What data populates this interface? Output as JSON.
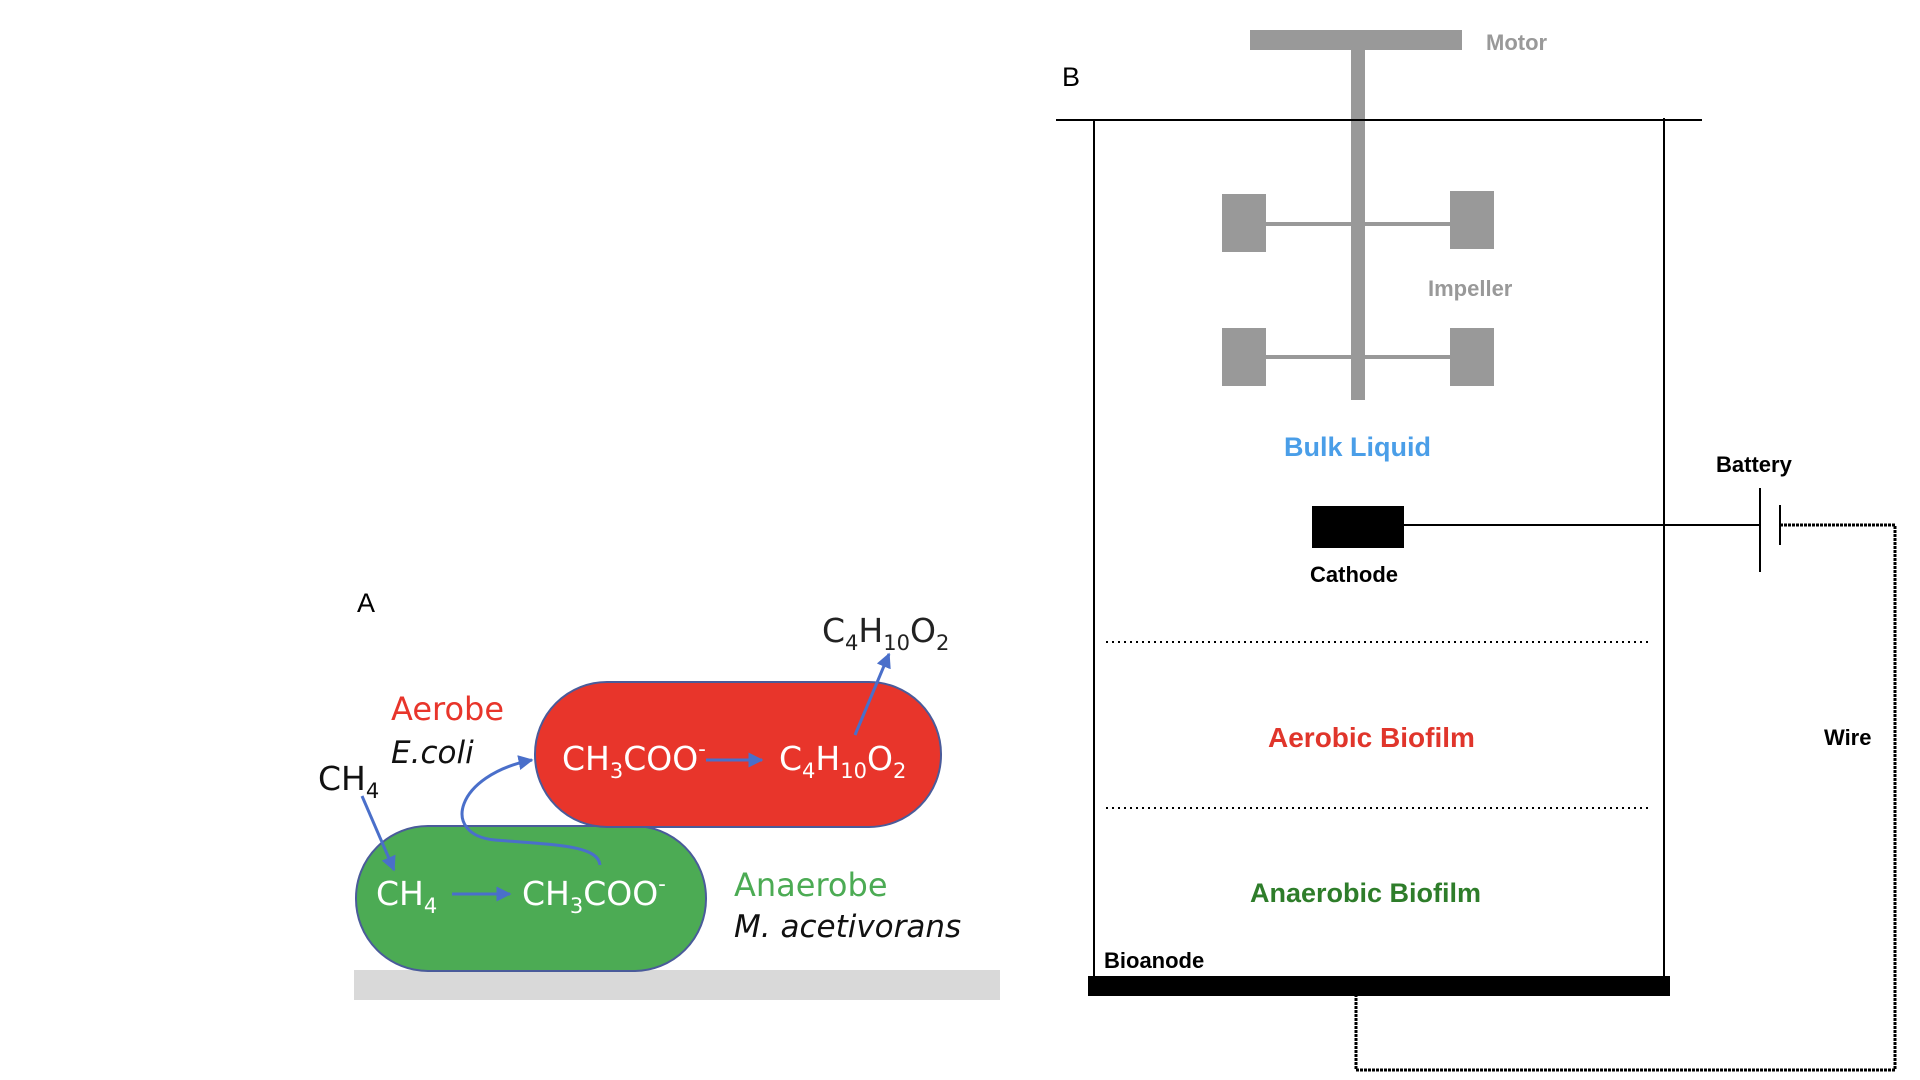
{
  "panel_a": {
    "label": "A",
    "aerobe": {
      "title": "Aerobe",
      "species": "E.coli",
      "reactant": "CH3COO-",
      "product": "C4H10O2"
    },
    "anaerobe": {
      "title": "Anaerobe",
      "species": "M. acetivorans",
      "reactant": "CH4",
      "product": "CH3COO-"
    },
    "external_methane": "CH4",
    "secreted_product": "C4H10O2",
    "colors": {
      "aerobe": "#e8352b",
      "anaerobe": "#4cab54",
      "arrow": "#4a6fca",
      "substrate": "#d9d9d9",
      "cell_border": "#4a5b9a"
    }
  },
  "panel_b": {
    "label": "B",
    "motor": "Motor",
    "impeller": "Impeller",
    "bulk_liquid": "Bulk Liquid",
    "cathode": "Cathode",
    "battery": "Battery",
    "aerobic_biofilm": "Aerobic Biofilm",
    "anaerobic_biofilm": "Anaerobic Biofilm",
    "bioanode": "Bioanode",
    "wire": "Wire",
    "colors": {
      "gray": "#999999",
      "bulk": "#4a9ee8",
      "aerobic": "#e0352b",
      "anaerobic": "#2e7d2a"
    }
  }
}
